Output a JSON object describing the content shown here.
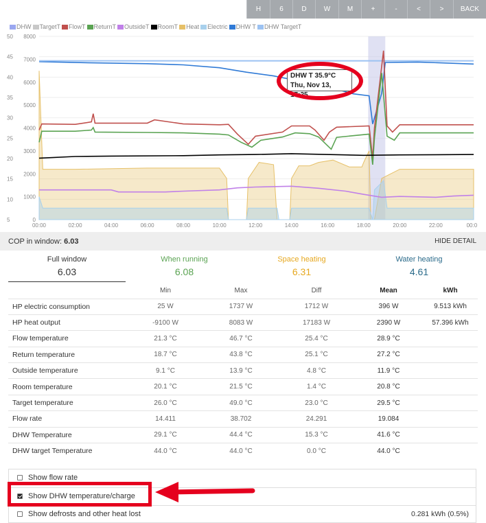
{
  "toolbar": {
    "buttons": [
      {
        "label": "H"
      },
      {
        "label": "6"
      },
      {
        "label": "D"
      },
      {
        "label": "W"
      },
      {
        "label": "M"
      },
      {
        "label": "+"
      },
      {
        "label": "-"
      },
      {
        "label": "<"
      },
      {
        "label": ">"
      },
      {
        "label": "BACK"
      }
    ]
  },
  "legend": [
    {
      "label": "DHW",
      "color": "#9aa7f0"
    },
    {
      "label": "TargetT",
      "color": "#c8c8c8"
    },
    {
      "label": "FlowT",
      "color": "#c0504d"
    },
    {
      "label": "ReturnT",
      "color": "#5aa352"
    },
    {
      "label": "OutsideT",
      "color": "#c080e8"
    },
    {
      "label": "RoomT",
      "color": "#000000"
    },
    {
      "label": "Heat",
      "color": "#e6c068"
    },
    {
      "label": "Electric",
      "color": "#a8d0ec"
    },
    {
      "label": "DHW T",
      "color": "#2f7ad6"
    },
    {
      "label": "DHW TargetT",
      "color": "#9cc2f2"
    }
  ],
  "chart_data": {
    "type": "line",
    "y_left_ticks": [
      "50",
      "45",
      "40",
      "35",
      "30",
      "25",
      "20",
      "15",
      "10",
      "5"
    ],
    "y_right_ticks": [
      "8000",
      "7000",
      "6000",
      "5000",
      "4000",
      "3000",
      "2000",
      "1000",
      "0"
    ],
    "x_ticks": [
      "00:00",
      "02:00",
      "04:00",
      "06:00",
      "08:00",
      "10:00",
      "12:00",
      "14:00",
      "16:00",
      "18:00",
      "20:00",
      "22:00",
      "00:0"
    ],
    "x_range_hours": [
      0,
      24.1
    ],
    "ylim_temp": [
      5,
      50
    ],
    "ylim_power": [
      0,
      8000
    ],
    "series": [
      {
        "name": "DHW T",
        "color": "#2f7ad6",
        "points": [
          [
            0,
            43.8
          ],
          [
            3,
            43.5
          ],
          [
            6,
            43.3
          ],
          [
            8,
            43
          ],
          [
            10,
            42.3
          ],
          [
            11.5,
            41.2
          ],
          [
            13,
            40.3
          ],
          [
            14,
            39.4
          ],
          [
            15.5,
            37.7
          ],
          [
            16.5,
            37
          ],
          [
            17.42,
            35.9
          ],
          [
            18.3,
            35.4
          ],
          [
            18.5,
            28.5
          ],
          [
            19,
            36
          ],
          [
            19.2,
            43.6
          ],
          [
            21,
            43.7
          ],
          [
            24.1,
            43.2
          ]
        ]
      },
      {
        "name": "DHW TargetT",
        "color": "#9cc2f2",
        "points": [
          [
            0,
            44
          ],
          [
            24.1,
            44
          ]
        ]
      },
      {
        "name": "FlowT",
        "color": "#c0504d",
        "points": [
          [
            0,
            27
          ],
          [
            0.15,
            28.5
          ],
          [
            2,
            28.4
          ],
          [
            2.9,
            29
          ],
          [
            3,
            31
          ],
          [
            3.1,
            28.7
          ],
          [
            6,
            28.7
          ],
          [
            6.4,
            29.5
          ],
          [
            8,
            28.5
          ],
          [
            10,
            28.3
          ],
          [
            10.5,
            28.4
          ],
          [
            11,
            26
          ],
          [
            11.6,
            23.5
          ],
          [
            12,
            25.5
          ],
          [
            13.5,
            26.5
          ],
          [
            14,
            28
          ],
          [
            15,
            28
          ],
          [
            15.3,
            27
          ],
          [
            15.8,
            24.5
          ],
          [
            16.1,
            26.5
          ],
          [
            16.5,
            27.7
          ],
          [
            18.3,
            28
          ],
          [
            18.5,
            20
          ],
          [
            18.6,
            27.5
          ],
          [
            19.1,
            46.5
          ],
          [
            19.3,
            28
          ],
          [
            19.6,
            26.5
          ],
          [
            20,
            28.3
          ],
          [
            24.1,
            28.3
          ]
        ]
      },
      {
        "name": "ReturnT",
        "color": "#5aa352",
        "points": [
          [
            0,
            24
          ],
          [
            0.15,
            26.7
          ],
          [
            2,
            26.7
          ],
          [
            2.9,
            27
          ],
          [
            3,
            27.6
          ],
          [
            3.1,
            26.5
          ],
          [
            6,
            26.4
          ],
          [
            8,
            26.3
          ],
          [
            10,
            26
          ],
          [
            10.5,
            25.8
          ],
          [
            11.2,
            24
          ],
          [
            11.8,
            22.8
          ],
          [
            12.3,
            24.5
          ],
          [
            13.5,
            25.3
          ],
          [
            14.2,
            26.3
          ],
          [
            15,
            26.1
          ],
          [
            15.5,
            25.3
          ],
          [
            16.2,
            22.3
          ],
          [
            16.5,
            25.2
          ],
          [
            18.3,
            26
          ],
          [
            18.5,
            18.5
          ],
          [
            18.6,
            25
          ],
          [
            19,
            41
          ],
          [
            19.3,
            25.5
          ],
          [
            19.7,
            24.5
          ],
          [
            20,
            26.3
          ],
          [
            24.1,
            26.3
          ]
        ]
      },
      {
        "name": "RoomT",
        "color": "#000000",
        "points": [
          [
            0,
            20.1
          ],
          [
            2,
            20.5
          ],
          [
            4,
            20.6
          ],
          [
            8,
            20.7
          ],
          [
            10,
            20.9
          ],
          [
            12,
            21
          ],
          [
            14,
            21.2
          ],
          [
            18,
            20.8
          ],
          [
            20,
            20.9
          ],
          [
            24.1,
            21
          ]
        ]
      },
      {
        "name": "OutsideT",
        "color": "#c080e8",
        "points": [
          [
            0,
            12.3
          ],
          [
            4,
            12.3
          ],
          [
            4.4,
            11.8
          ],
          [
            7,
            11.8
          ],
          [
            8,
            12
          ],
          [
            10,
            12.3
          ],
          [
            11,
            12.8
          ],
          [
            12,
            13
          ],
          [
            14,
            13.2
          ],
          [
            15.5,
            12.7
          ],
          [
            17,
            12
          ],
          [
            18,
            11.2
          ],
          [
            19,
            10.5
          ],
          [
            20,
            10.7
          ],
          [
            22,
            10.5
          ],
          [
            23,
            10.8
          ],
          [
            24.1,
            11
          ]
        ]
      },
      {
        "name": "Heat (W)",
        "color": "#e6c068",
        "points": [
          [
            0,
            6500
          ],
          [
            0.2,
            2200
          ],
          [
            2,
            2200
          ],
          [
            6,
            2250
          ],
          [
            10,
            2250
          ],
          [
            10.4,
            1800
          ],
          [
            10.5,
            0
          ],
          [
            11.5,
            0
          ],
          [
            11.6,
            1800
          ],
          [
            12.2,
            2500
          ],
          [
            13,
            2400
          ],
          [
            13.2,
            0
          ],
          [
            13.9,
            0
          ],
          [
            14,
            1800
          ],
          [
            14.4,
            2350
          ],
          [
            15,
            2350
          ],
          [
            15.5,
            2500
          ],
          [
            16.3,
            2600
          ],
          [
            17.2,
            2300
          ],
          [
            17.9,
            2300
          ],
          [
            18,
            2500
          ],
          [
            18.3,
            3000
          ],
          [
            18.4,
            0
          ],
          [
            18.6,
            0
          ],
          [
            19,
            1800
          ],
          [
            20,
            2200
          ],
          [
            24.1,
            2200
          ]
        ]
      },
      {
        "name": "Electric (W)",
        "color": "#a8d0ec",
        "points": [
          [
            0,
            1000
          ],
          [
            0.2,
            500
          ],
          [
            10,
            500
          ],
          [
            10.4,
            500
          ],
          [
            10.5,
            0
          ],
          [
            11.5,
            0
          ],
          [
            11.6,
            500
          ],
          [
            13.2,
            500
          ],
          [
            13.3,
            0
          ],
          [
            13.9,
            0
          ],
          [
            14,
            500
          ],
          [
            18.3,
            500
          ],
          [
            18.5,
            0
          ],
          [
            18.6,
            1300
          ],
          [
            19.1,
            1700
          ],
          [
            19.3,
            500
          ],
          [
            24.1,
            500
          ]
        ]
      }
    ],
    "highlight_range_hours": [
      18.25,
      19.2
    ],
    "tooltip": {
      "line1": "DHW T 35.9°C",
      "line2": "Thu, Nov 13, 17:25"
    }
  },
  "cop": {
    "label": "COP in window:",
    "value": "6.03",
    "hide_detail": "HIDE DETAIL"
  },
  "tabs": [
    {
      "label": "Full window",
      "value": "6.03",
      "color": "#333333"
    },
    {
      "label": "When running",
      "value": "6.08",
      "color": "#5aa352"
    },
    {
      "label": "Space heating",
      "value": "6.31",
      "color": "#e6a820"
    },
    {
      "label": "Water heating",
      "value": "4.61",
      "color": "#2a6a8a"
    }
  ],
  "stats": {
    "headers": [
      "",
      "Min",
      "Max",
      "Diff",
      "Mean",
      "kWh"
    ],
    "rows": [
      [
        "HP electric consumption",
        "25 W",
        "1737 W",
        "1712 W",
        "396 W",
        "9.513 kWh"
      ],
      [
        "HP heat output",
        "-9100 W",
        "8083 W",
        "17183 W",
        "2390 W",
        "57.396 kWh"
      ],
      [
        "Flow temperature",
        "21.3 °C",
        "46.7 °C",
        "25.4 °C",
        "28.9 °C",
        ""
      ],
      [
        "Return temperature",
        "18.7 °C",
        "43.8 °C",
        "25.1 °C",
        "27.2 °C",
        ""
      ],
      [
        "Outside temperature",
        "9.1 °C",
        "13.9 °C",
        "4.8 °C",
        "11.9 °C",
        ""
      ],
      [
        "Room temperature",
        "20.1 °C",
        "21.5 °C",
        "1.4 °C",
        "20.8 °C",
        ""
      ],
      [
        "Target temperature",
        "26.0 °C",
        "49.0 °C",
        "23.0 °C",
        "29.5 °C",
        ""
      ],
      [
        "Flow rate",
        "14.411",
        "38.702",
        "24.291",
        "19.084",
        ""
      ],
      [
        "DHW Temperature",
        "29.1 °C",
        "44.4 °C",
        "15.3 °C",
        "41.6 °C",
        ""
      ],
      [
        "DHW target Temperature",
        "44.0 °C",
        "44.0 °C",
        "0.0 °C",
        "44.0 °C",
        ""
      ]
    ]
  },
  "options": [
    {
      "label": "Show flow rate",
      "checked": false,
      "extra": ""
    },
    {
      "label": "Show DHW temperature/charge",
      "checked": true,
      "extra": ""
    },
    {
      "label": "Show defrosts and other heat lost",
      "checked": false,
      "extra": "0.281 kWh (0.5%)"
    }
  ]
}
